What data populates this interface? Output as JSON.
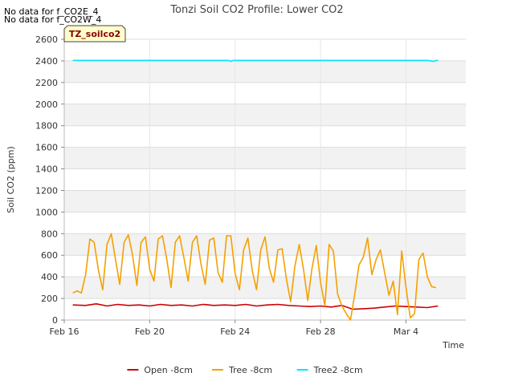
{
  "header": {
    "no_data_notes": [
      "No data for f_CO2E_4",
      "No data for f_CO2W_4"
    ]
  },
  "chart_data": {
    "type": "line",
    "title": "Tonzi Soil CO2 Profile: Lower CO2",
    "xlabel": "Time",
    "ylabel": "Soil CO2 (ppm)",
    "ylim": [
      0,
      2600
    ],
    "xlim": [
      16.0,
      34.8
    ],
    "yticks": [
      0,
      200,
      400,
      600,
      800,
      1000,
      1200,
      1400,
      1600,
      1800,
      2000,
      2200,
      2400,
      2600
    ],
    "xticks": [
      {
        "value": 16,
        "label": "Feb 16"
      },
      {
        "value": 20,
        "label": "Feb 20"
      },
      {
        "value": 24,
        "label": "Feb 24"
      },
      {
        "value": 28,
        "label": "Feb 28"
      },
      {
        "value": 32,
        "label": "Mar 4"
      }
    ],
    "grid": true,
    "banded_background": true,
    "site_label": "TZ_soilco2",
    "legend_position": "bottom",
    "series": [
      {
        "name": "Open -8cm",
        "color": "#cc0000",
        "x": [
          16.4,
          17.0,
          17.5,
          18.0,
          18.5,
          19.0,
          19.5,
          20.0,
          20.5,
          21.0,
          21.5,
          22.0,
          22.5,
          23.0,
          23.5,
          24.0,
          24.5,
          25.0,
          25.5,
          26.0,
          26.5,
          27.0,
          27.5,
          28.0,
          28.5,
          29.0,
          29.5,
          30.0,
          30.5,
          31.0,
          31.5,
          32.0,
          32.5,
          33.0,
          33.5
        ],
        "y": [
          140,
          135,
          150,
          130,
          145,
          135,
          140,
          130,
          145,
          135,
          140,
          130,
          145,
          135,
          140,
          135,
          145,
          130,
          140,
          145,
          135,
          130,
          125,
          130,
          120,
          135,
          100,
          105,
          110,
          120,
          130,
          125,
          120,
          115,
          130
        ]
      },
      {
        "name": "Tree -8cm",
        "color": "#f5a000",
        "x": [
          16.4,
          16.6,
          16.8,
          17.0,
          17.2,
          17.4,
          17.6,
          17.8,
          18.0,
          18.2,
          18.4,
          18.6,
          18.8,
          19.0,
          19.2,
          19.4,
          19.6,
          19.8,
          20.0,
          20.2,
          20.4,
          20.6,
          20.8,
          21.0,
          21.2,
          21.4,
          21.6,
          21.8,
          22.0,
          22.2,
          22.4,
          22.6,
          22.8,
          23.0,
          23.2,
          23.4,
          23.6,
          23.8,
          24.0,
          24.2,
          24.4,
          24.6,
          24.8,
          25.0,
          25.2,
          25.4,
          25.6,
          25.8,
          26.0,
          26.2,
          26.4,
          26.6,
          26.8,
          27.0,
          27.2,
          27.4,
          27.6,
          27.8,
          28.0,
          28.2,
          28.4,
          28.6,
          28.8,
          29.0,
          29.2,
          29.4,
          29.6,
          29.8,
          30.0,
          30.2,
          30.4,
          30.6,
          30.8,
          31.0,
          31.2,
          31.4,
          31.6,
          31.8,
          32.0,
          32.2,
          32.4,
          32.6,
          32.8,
          33.0,
          33.2,
          33.4
        ],
        "y": [
          250,
          270,
          250,
          420,
          750,
          720,
          460,
          280,
          700,
          800,
          560,
          330,
          720,
          790,
          600,
          320,
          720,
          770,
          470,
          360,
          750,
          780,
          560,
          300,
          720,
          780,
          580,
          360,
          720,
          780,
          520,
          330,
          740,
          760,
          440,
          350,
          780,
          780,
          430,
          280,
          650,
          760,
          460,
          280,
          650,
          770,
          480,
          350,
          650,
          660,
          380,
          170,
          500,
          700,
          470,
          180,
          480,
          690,
          350,
          130,
          700,
          640,
          240,
          130,
          60,
          0,
          240,
          510,
          580,
          760,
          420,
          560,
          650,
          440,
          230,
          360,
          50,
          640,
          300,
          20,
          60,
          560,
          620,
          400,
          310,
          300
        ]
      },
      {
        "name": "Tree2 -8cm",
        "color": "#00e5ff",
        "x": [
          16.4,
          17.0,
          18.0,
          19.0,
          20.0,
          21.0,
          22.0,
          23.0,
          23.7,
          23.8,
          23.9,
          25.0,
          26.0,
          27.0,
          28.0,
          29.0,
          30.0,
          31.0,
          32.0,
          33.0,
          33.3,
          33.4,
          33.5
        ],
        "y": [
          2405,
          2405,
          2405,
          2405,
          2405,
          2405,
          2405,
          2405,
          2405,
          2395,
          2405,
          2405,
          2405,
          2405,
          2405,
          2405,
          2405,
          2405,
          2405,
          2405,
          2395,
          2405,
          2405
        ]
      }
    ]
  }
}
